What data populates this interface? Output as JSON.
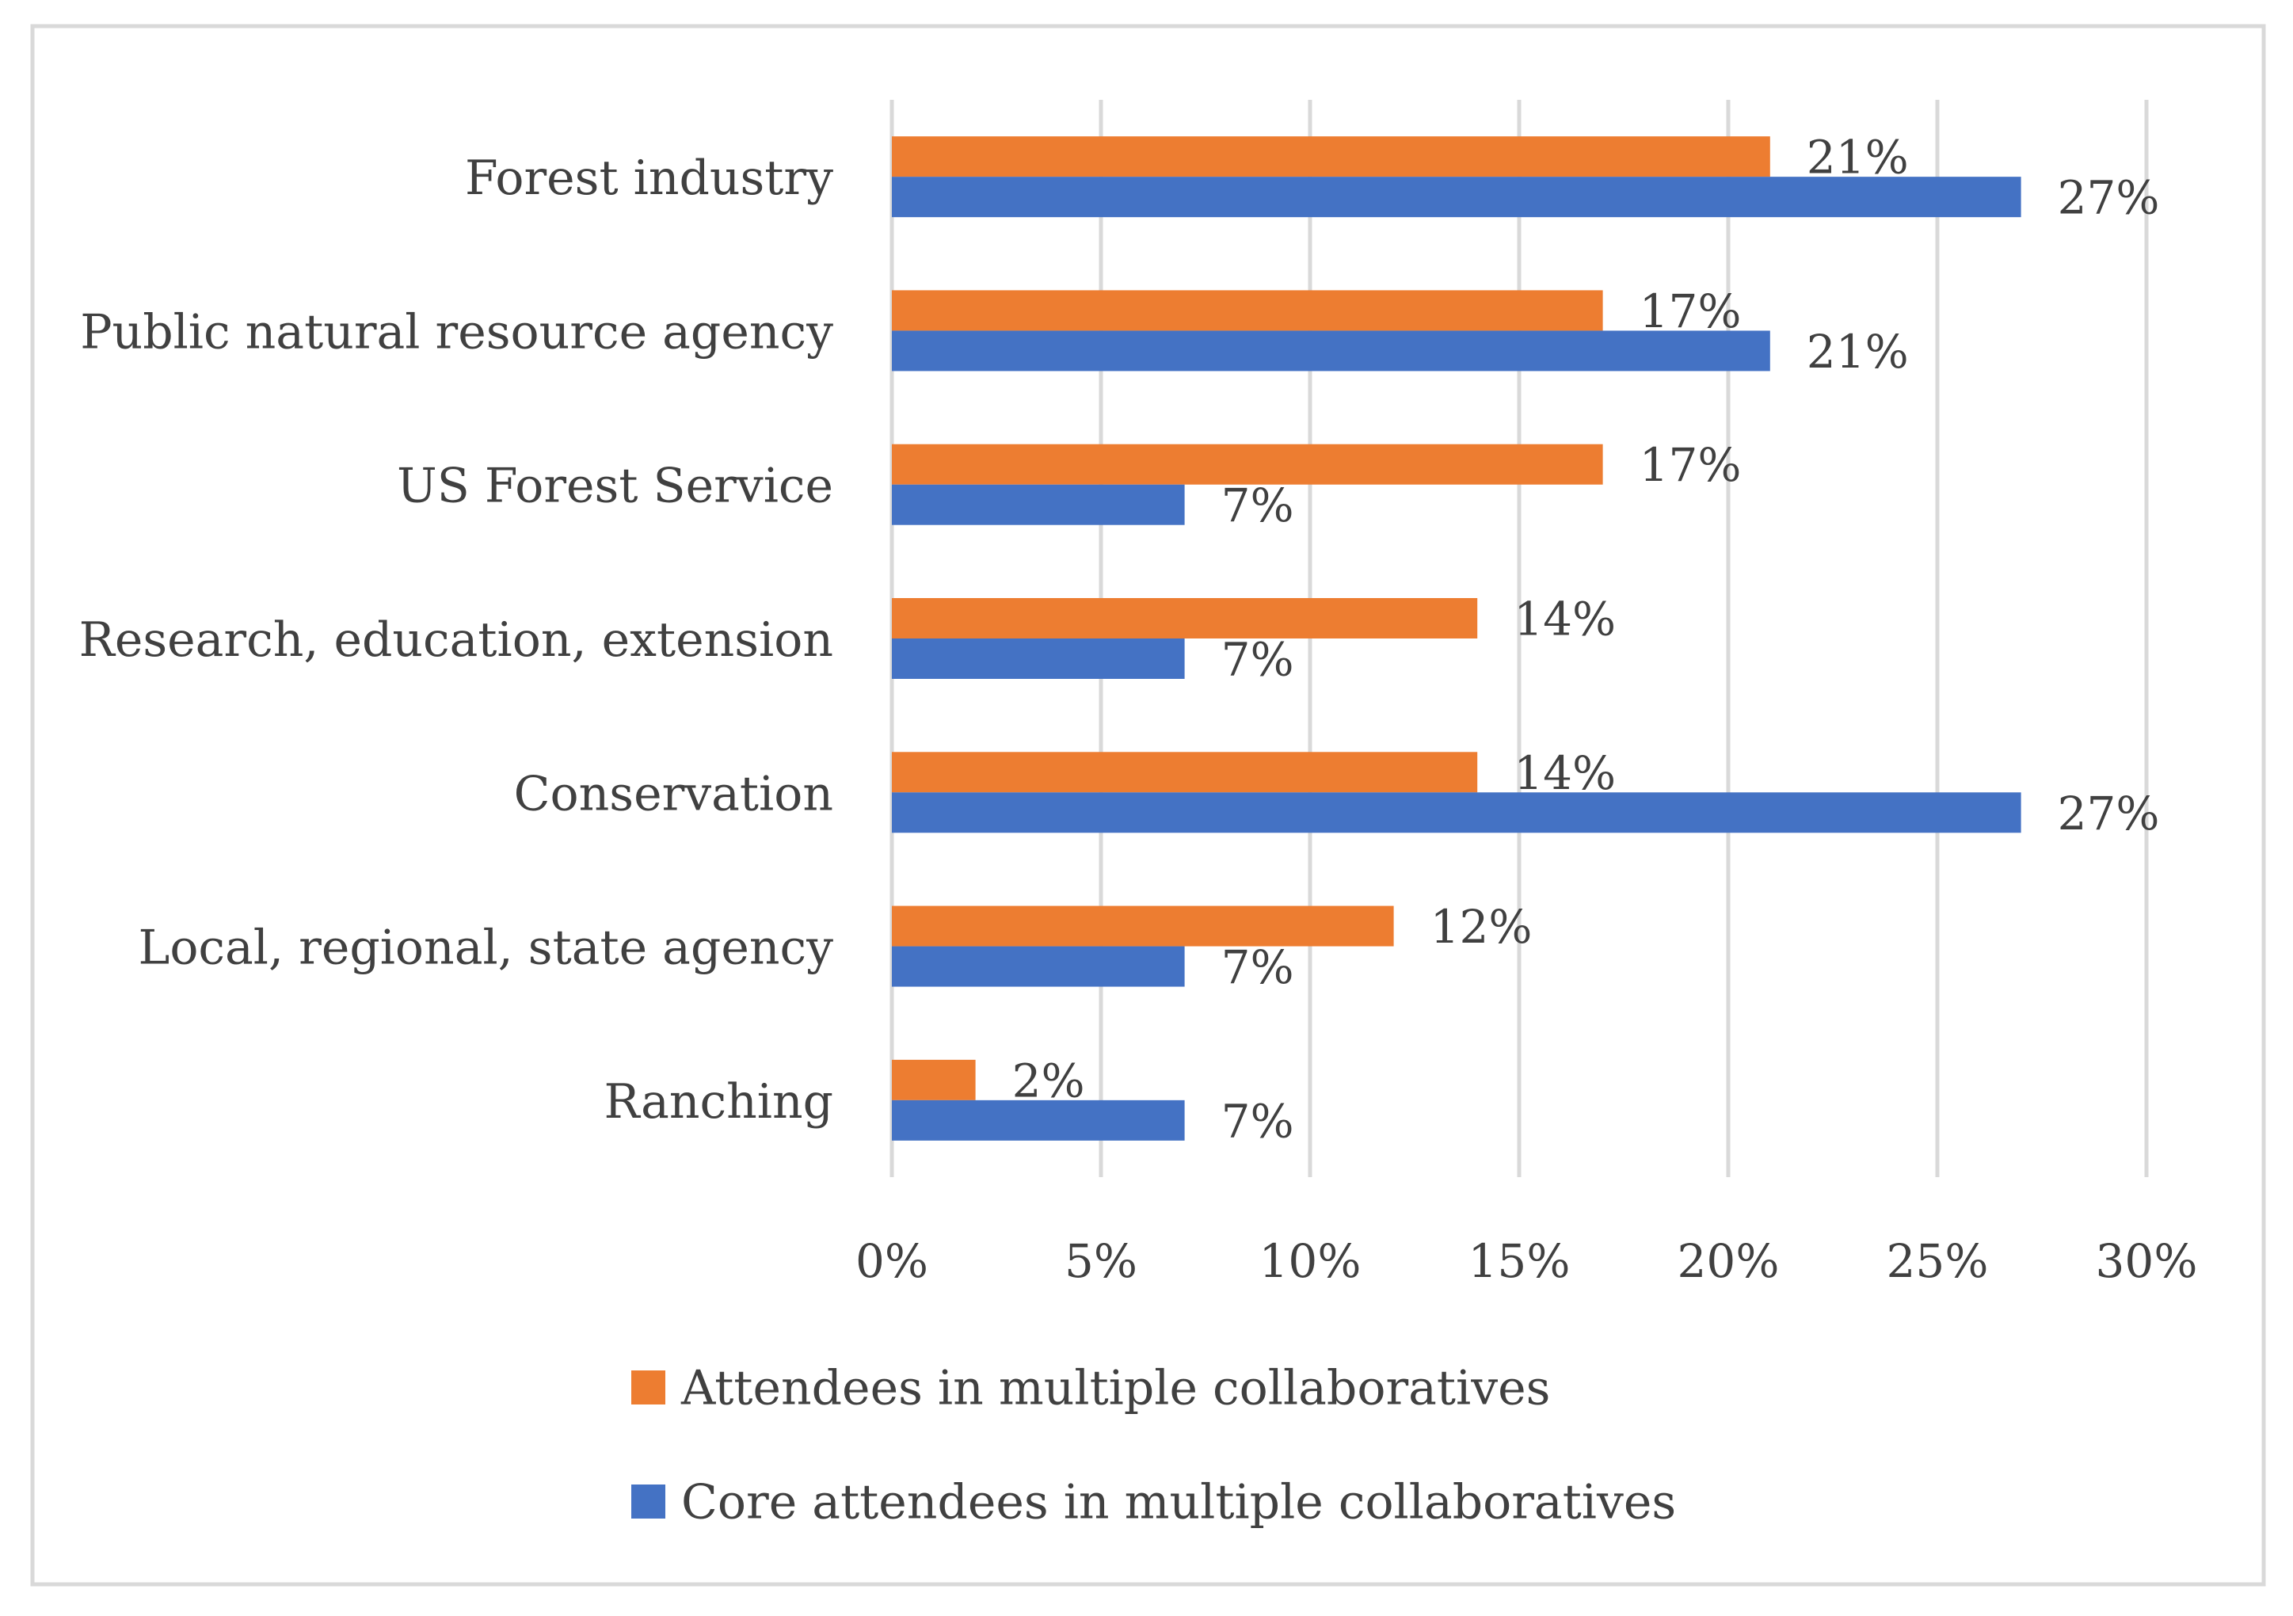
{
  "chart_data": {
    "type": "bar",
    "orientation": "horizontal",
    "categories": [
      "Forest industry",
      "Public natural resource agency",
      "US Forest Service",
      "Research, education, extension",
      "Conservation",
      "Local, regional, state agency",
      "Ranching"
    ],
    "series": [
      {
        "name": "Attendees in multiple collaboratives",
        "color": "#ED7D31",
        "values": [
          21,
          17,
          17,
          14,
          14,
          12,
          2
        ],
        "labels": [
          "21%",
          "17%",
          "17%",
          "14%",
          "14%",
          "12%",
          "2%"
        ]
      },
      {
        "name": "Core attendees in multiple collaboratives",
        "color": "#4472C4",
        "values": [
          27,
          21,
          7,
          7,
          27,
          7,
          7
        ],
        "labels": [
          "27%",
          "21%",
          "7%",
          "7%",
          "27%",
          "7%",
          "7%"
        ]
      }
    ],
    "xlim": [
      0,
      30
    ],
    "x_ticks": [
      0,
      5,
      10,
      15,
      20,
      25,
      30
    ],
    "x_tick_labels": [
      "0%",
      "5%",
      "10%",
      "15%",
      "20%",
      "25%",
      "30%"
    ],
    "grid": "vertical",
    "legend": "bottom",
    "colors": {
      "grid": "#D9D9D9",
      "border": "#D9D9D9",
      "text": "#404040"
    }
  }
}
